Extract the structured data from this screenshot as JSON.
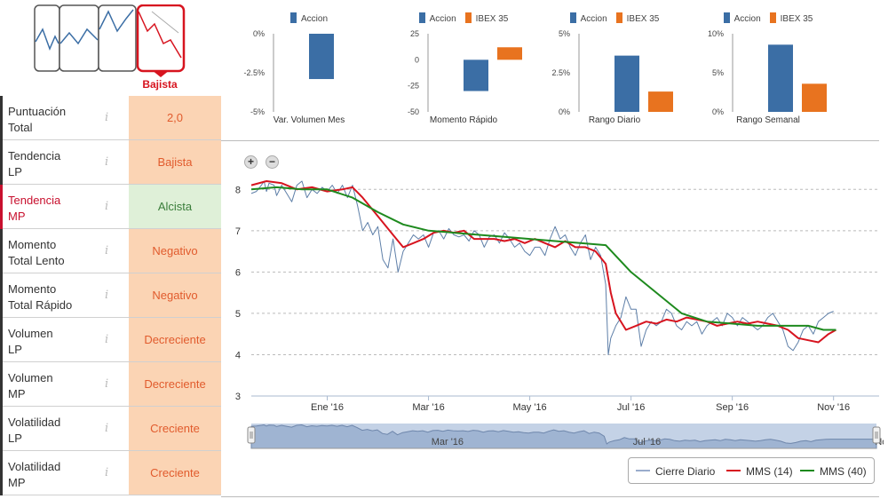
{
  "trend": {
    "badge_label": "Bajista",
    "colors": {
      "active": "#d7141f",
      "inactive": "#555555",
      "line": "#3b6ea5"
    }
  },
  "table": {
    "rows": [
      {
        "label_1": "Puntuación",
        "label_2": "Total",
        "value": "2,0",
        "style": "orange",
        "active": false
      },
      {
        "label_1": "Tendencia",
        "label_2": "LP",
        "value": "Bajista",
        "style": "orange",
        "active": false
      },
      {
        "label_1": "Tendencia",
        "label_2": "MP",
        "value": "Alcista",
        "style": "green",
        "active": true
      },
      {
        "label_1": "Momento",
        "label_2": "Total Lento",
        "value": "Negativo",
        "style": "orange",
        "active": false
      },
      {
        "label_1": "Momento",
        "label_2": "Total Rápido",
        "value": "Negativo",
        "style": "orange",
        "active": false
      },
      {
        "label_1": "Volumen",
        "label_2": "LP",
        "value": "Decreciente",
        "style": "orange",
        "active": false
      },
      {
        "label_1": "Volumen",
        "label_2": "MP",
        "value": "Decreciente",
        "style": "orange",
        "active": false
      },
      {
        "label_1": "Volatilidad",
        "label_2": "LP",
        "value": "Creciente",
        "style": "orange",
        "active": false
      },
      {
        "label_1": "Volatilidad",
        "label_2": "MP",
        "value": "Creciente",
        "style": "orange",
        "active": false
      }
    ],
    "info_glyph": "i"
  },
  "chart_data": [
    {
      "type": "bar",
      "title": "Var. Volumen Mes",
      "series": [
        {
          "name": "Accion",
          "values": [
            -2.9
          ],
          "color": "#3b6ea5"
        }
      ],
      "yticks": [
        "0%",
        "-2.5%",
        "-5%"
      ],
      "ylim": [
        -5,
        0
      ]
    },
    {
      "type": "bar",
      "title": "Momento Rápido",
      "series": [
        {
          "name": "Accion",
          "values": [
            -30
          ],
          "color": "#3b6ea5"
        },
        {
          "name": "IBEX 35",
          "values": [
            12
          ],
          "color": "#e8731f"
        }
      ],
      "yticks": [
        "25",
        "0",
        "-25",
        "-50"
      ],
      "ylim": [
        -50,
        25
      ]
    },
    {
      "type": "bar",
      "title": "Rango Diario",
      "series": [
        {
          "name": "Accion",
          "values": [
            3.6
          ],
          "color": "#3b6ea5"
        },
        {
          "name": "IBEX 35",
          "values": [
            1.3
          ],
          "color": "#e8731f"
        }
      ],
      "yticks": [
        "5%",
        "2.5%",
        "0%"
      ],
      "ylim": [
        0,
        5
      ]
    },
    {
      "type": "bar",
      "title": "Rango Semanal",
      "series": [
        {
          "name": "Accion",
          "values": [
            8.6
          ],
          "color": "#3b6ea5"
        },
        {
          "name": "IBEX 35",
          "values": [
            3.6
          ],
          "color": "#e8731f"
        }
      ],
      "yticks": [
        "10%",
        "5%",
        "0%"
      ],
      "ylim": [
        0,
        10
      ]
    },
    {
      "type": "line",
      "title": "",
      "x_labels": [
        "Ene '16",
        "Mar '16",
        "May '16",
        "Jul '16",
        "Sep '16",
        "Nov '16"
      ],
      "x_label_positions": [
        1.5,
        3.5,
        5.5,
        7.5,
        9.5,
        11.5
      ],
      "x_range": [
        0,
        12.4
      ],
      "yticks": [
        "8",
        "7",
        "6",
        "5",
        "4",
        "3"
      ],
      "ylim": [
        3,
        8.5
      ],
      "grid": true,
      "series": [
        {
          "name": "Cierre Diario",
          "color": "#5e7fa8",
          "x": [
            0,
            0.1,
            0.2,
            0.25,
            0.3,
            0.35,
            0.45,
            0.5,
            0.6,
            0.7,
            0.8,
            0.9,
            1.0,
            1.1,
            1.2,
            1.3,
            1.4,
            1.5,
            1.6,
            1.7,
            1.8,
            1.9,
            2.0,
            2.1,
            2.2,
            2.3,
            2.4,
            2.5,
            2.6,
            2.7,
            2.8,
            2.9,
            3.0,
            3.1,
            3.2,
            3.3,
            3.4,
            3.5,
            3.6,
            3.7,
            3.8,
            3.9,
            4.0,
            4.1,
            4.2,
            4.3,
            4.4,
            4.5,
            4.6,
            4.7,
            4.8,
            4.9,
            5.0,
            5.1,
            5.2,
            5.3,
            5.4,
            5.5,
            5.6,
            5.7,
            5.8,
            5.9,
            6.0,
            6.1,
            6.2,
            6.3,
            6.4,
            6.5,
            6.6,
            6.7,
            6.8,
            6.9,
            7.0,
            7.05,
            7.1,
            7.2,
            7.3,
            7.4,
            7.5,
            7.6,
            7.7,
            7.8,
            7.9,
            8.0,
            8.1,
            8.2,
            8.3,
            8.4,
            8.5,
            8.6,
            8.7,
            8.8,
            8.9,
            9.0,
            9.1,
            9.2,
            9.3,
            9.4,
            9.5,
            9.6,
            9.7,
            9.8,
            9.9,
            10.0,
            10.1,
            10.2,
            10.3,
            10.4,
            10.5,
            10.6,
            10.7,
            10.8,
            10.9,
            11.0,
            11.1,
            11.2,
            11.3,
            11.4,
            11.5
          ],
          "values": [
            7.9,
            7.95,
            8.1,
            8.2,
            7.95,
            8.15,
            8.1,
            7.85,
            8.1,
            7.9,
            7.7,
            8.1,
            8.2,
            7.8,
            8.0,
            7.9,
            8.05,
            7.95,
            8.1,
            7.9,
            8.1,
            7.8,
            8.1,
            7.6,
            7.0,
            7.2,
            6.9,
            7.1,
            6.3,
            6.1,
            6.8,
            6.0,
            6.5,
            6.7,
            6.9,
            6.8,
            6.9,
            6.6,
            6.95,
            7.0,
            6.8,
            7.05,
            6.9,
            6.85,
            6.9,
            6.75,
            7.0,
            6.9,
            6.6,
            6.85,
            6.9,
            6.7,
            6.95,
            6.8,
            6.6,
            6.7,
            6.5,
            6.4,
            6.6,
            6.6,
            6.4,
            6.8,
            7.1,
            6.8,
            6.9,
            6.6,
            6.4,
            6.7,
            6.9,
            6.3,
            6.6,
            6.4,
            5.7,
            4.0,
            4.4,
            4.7,
            4.9,
            5.4,
            5.1,
            5.1,
            4.2,
            4.6,
            4.8,
            4.7,
            4.8,
            5.1,
            5.0,
            4.7,
            4.6,
            4.8,
            4.7,
            4.8,
            4.5,
            4.7,
            4.8,
            4.9,
            4.7,
            5.0,
            4.9,
            4.7,
            4.9,
            4.8,
            4.7,
            4.6,
            4.7,
            4.9,
            5.0,
            4.8,
            4.6,
            4.2,
            4.1,
            4.3,
            4.6,
            4.7,
            4.5,
            4.8,
            4.9,
            5.0,
            5.05
          ]
        },
        {
          "name": "MMS (14)",
          "color": "#d7141f",
          "x": [
            0,
            0.3,
            0.6,
            0.9,
            1.2,
            1.5,
            1.8,
            2.0,
            2.2,
            2.4,
            2.6,
            2.8,
            3.0,
            3.2,
            3.4,
            3.6,
            3.8,
            4.0,
            4.2,
            4.4,
            4.6,
            4.8,
            5.0,
            5.2,
            5.4,
            5.6,
            5.8,
            6.0,
            6.2,
            6.4,
            6.6,
            6.8,
            7.0,
            7.1,
            7.2,
            7.4,
            7.6,
            7.8,
            8.0,
            8.2,
            8.4,
            8.6,
            8.8,
            9.0,
            9.2,
            9.4,
            9.6,
            9.8,
            10.0,
            10.2,
            10.4,
            10.6,
            10.8,
            11.0,
            11.2,
            11.4,
            11.55
          ],
          "values": [
            8.1,
            8.2,
            8.15,
            8.0,
            8.05,
            7.95,
            8.0,
            8.05,
            7.8,
            7.5,
            7.2,
            6.9,
            6.6,
            6.7,
            6.8,
            6.95,
            7.0,
            6.95,
            7.0,
            6.8,
            6.8,
            6.8,
            6.75,
            6.8,
            6.7,
            6.8,
            6.7,
            6.6,
            6.75,
            6.6,
            6.6,
            6.5,
            6.2,
            5.5,
            5.0,
            4.6,
            4.7,
            4.8,
            4.75,
            4.85,
            4.8,
            4.9,
            4.85,
            4.8,
            4.7,
            4.75,
            4.8,
            4.75,
            4.8,
            4.75,
            4.7,
            4.6,
            4.4,
            4.35,
            4.3,
            4.5,
            4.6
          ]
        },
        {
          "name": "MMS (40)",
          "color": "#1e8a1e",
          "x": [
            0,
            0.5,
            1.0,
            1.5,
            2.0,
            2.5,
            3.0,
            3.5,
            4.0,
            4.5,
            5.0,
            5.5,
            6.0,
            6.5,
            7.0,
            7.5,
            8.0,
            8.5,
            9.0,
            9.5,
            10.0,
            10.5,
            11.0,
            11.3,
            11.5,
            11.55
          ],
          "values": [
            8.0,
            8.05,
            8.0,
            8.0,
            7.8,
            7.45,
            7.15,
            7.0,
            6.95,
            6.9,
            6.85,
            6.8,
            6.75,
            6.7,
            6.65,
            6.0,
            5.5,
            5.0,
            4.8,
            4.75,
            4.7,
            4.7,
            4.7,
            4.6,
            4.6,
            4.6
          ]
        }
      ]
    }
  ],
  "navigator": {
    "labels": [
      "Mar '16",
      "Jul '16",
      "No"
    ],
    "label_positions": [
      3.5,
      7.5,
      12.3
    ]
  },
  "legend": {
    "items": [
      {
        "name": "Cierre Diario",
        "color": "#9aaccc"
      },
      {
        "name": "MMS (14)",
        "color": "#d7141f"
      },
      {
        "name": "MMS (40)",
        "color": "#1e8a1e"
      }
    ]
  },
  "zoom": {
    "in": "+",
    "out": "−"
  }
}
